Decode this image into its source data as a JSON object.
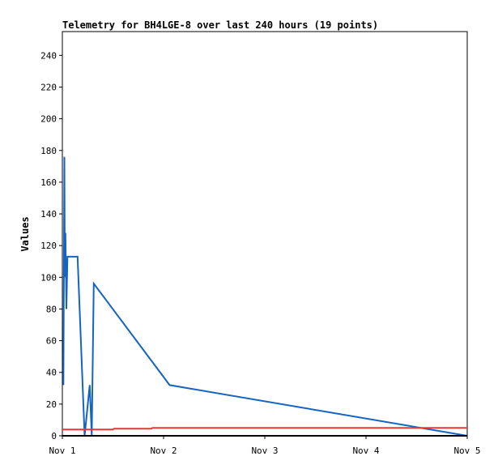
{
  "chart_data": {
    "type": "line",
    "title": "Telemetry for BH4LGE-8 over last 240 hours (19 points)",
    "xlabel": "",
    "ylabel": "Values",
    "ylim": [
      0,
      255
    ],
    "xlim_days": [
      0,
      4
    ],
    "x_ticks": [
      {
        "x": 0,
        "label": "Nov 1"
      },
      {
        "x": 1,
        "label": "Nov 2"
      },
      {
        "x": 2,
        "label": "Nov 3"
      },
      {
        "x": 3,
        "label": "Nov 4"
      },
      {
        "x": 4,
        "label": "Nov 5"
      }
    ],
    "y_ticks": [
      0,
      20,
      40,
      60,
      80,
      100,
      120,
      140,
      160,
      180,
      200,
      220,
      240
    ],
    "grid": false,
    "legend": "none",
    "series": [
      {
        "color": "#1565c0",
        "points": [
          [
            0.01,
            32
          ],
          [
            0.02,
            176
          ],
          [
            0.025,
            100
          ],
          [
            0.03,
            128
          ],
          [
            0.04,
            80
          ],
          [
            0.05,
            113
          ],
          [
            0.15,
            113
          ],
          [
            0.22,
            0
          ],
          [
            0.27,
            32
          ],
          [
            0.29,
            0
          ],
          [
            0.31,
            96
          ],
          [
            1.06,
            32
          ],
          [
            4.0,
            0
          ]
        ]
      },
      {
        "color": "#e53935",
        "points": [
          [
            0,
            4
          ],
          [
            0.5,
            4
          ],
          [
            0.51,
            4.5
          ],
          [
            0.88,
            4.5
          ],
          [
            0.89,
            5
          ],
          [
            4.0,
            5
          ]
        ]
      },
      {
        "color": "#000000",
        "points": [
          [
            0,
            0
          ],
          [
            4.0,
            0
          ]
        ]
      }
    ]
  }
}
